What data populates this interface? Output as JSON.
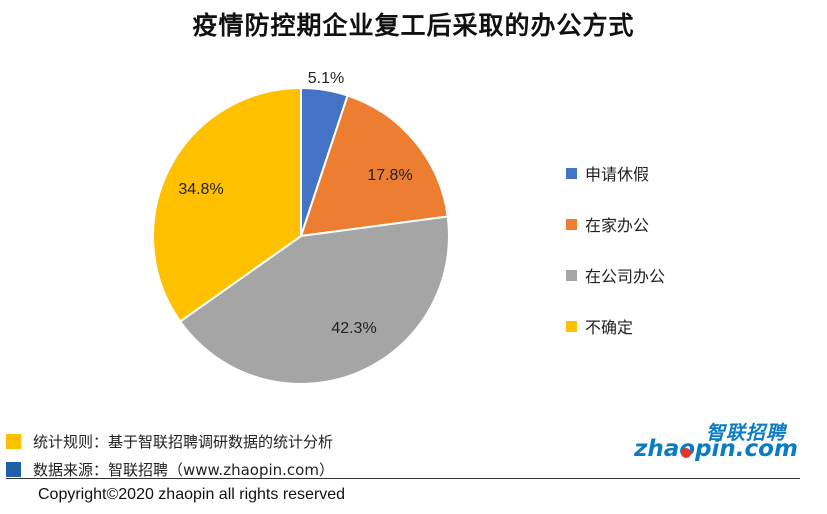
{
  "title": "疫情防控期企业复工后采取的办公方式",
  "chart_data": {
    "type": "pie",
    "title": "疫情防控期企业复工后采取的办公方式",
    "categories": [
      "申请休假",
      "在家办公",
      "在公司办公",
      "不确定"
    ],
    "values": [
      5.1,
      17.8,
      42.3,
      34.8
    ],
    "value_labels": [
      "5.1%",
      "17.8%",
      "42.3%",
      "34.8%"
    ],
    "colors": [
      "#4472c4",
      "#ed7d31",
      "#a5a5a5",
      "#ffc000"
    ],
    "start_angle_deg": 0,
    "direction": "clockwise",
    "legend_position": "right"
  },
  "notes": [
    {
      "text": "统计规则：基于智联招聘调研数据的统计分析",
      "color": "#ffc000"
    },
    {
      "text": "数据来源：智联招聘（www.zhaopin.com）",
      "color": "#1f5fa8"
    }
  ],
  "logo": {
    "cn": "智联招聘",
    "en": "zhaopin.com"
  },
  "copyright": "Copyright©2020 zhaopin all rights reserved"
}
